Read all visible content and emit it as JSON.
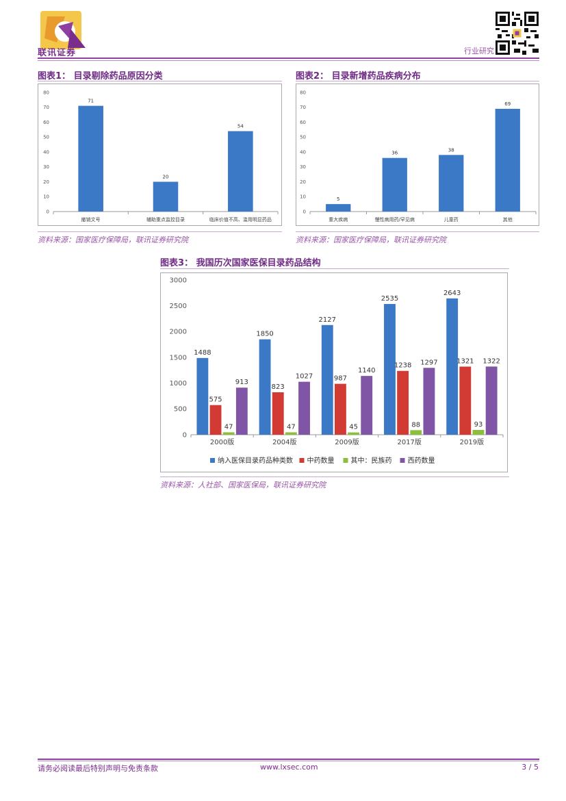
{
  "header": {
    "brand_name": "联讯证券",
    "section_label": "行业研究",
    "brand_color": "#8e3fa0"
  },
  "figures": {
    "fig1": {
      "title": "图表1：  目录剔除药品原因分类",
      "source": "资料来源：国家医疗保障局，联讯证券研究院"
    },
    "fig2": {
      "title": "图表2：  目录新增药品疾病分布",
      "source": "资料来源：国家医疗保障局，联讯证券研究院"
    },
    "fig3": {
      "title": "图表3：  我国历次国家医保目录药品结构",
      "source": "资料来源：人社部、国家医保局，联讯证券研究院"
    }
  },
  "chart_data": [
    {
      "type": "bar",
      "categories": [
        "撤销文号",
        "辅助重点监控目录",
        "临床价值不高、滥用明显药品"
      ],
      "values": [
        71,
        20,
        54
      ],
      "ylim": [
        0,
        80
      ],
      "yticks": [
        0,
        10,
        20,
        30,
        40,
        50,
        60,
        70,
        80
      ],
      "color": "#3b78c6",
      "grid": false
    },
    {
      "type": "bar",
      "categories": [
        "重大疾病",
        "慢性病用药/罕见病",
        "儿童药",
        "其他"
      ],
      "values": [
        5,
        36,
        38,
        69
      ],
      "ylim": [
        0,
        80
      ],
      "yticks": [
        0,
        10,
        20,
        30,
        40,
        50,
        60,
        70,
        80
      ],
      "color": "#3b78c6",
      "grid": false
    },
    {
      "type": "bar",
      "categories": [
        "2000版",
        "2004版",
        "2009版",
        "2017版",
        "2019版"
      ],
      "ylim": [
        0,
        3000
      ],
      "yticks": [
        0,
        500,
        1000,
        1500,
        2000,
        2500,
        3000
      ],
      "legend": "bottom",
      "grid": false,
      "series": [
        {
          "name": "纳入医保目录药品种类数",
          "values": [
            1488,
            1850,
            2127,
            2535,
            2643
          ],
          "color": "#3b78c6"
        },
        {
          "name": "中药数量",
          "values": [
            575,
            823,
            987,
            1238,
            1321
          ],
          "color": "#d23a34"
        },
        {
          "name": "其中：民族药",
          "values": [
            47,
            47,
            45,
            88,
            93
          ],
          "color": "#8bbf3c"
        },
        {
          "name": "西药数量",
          "values": [
            913,
            1027,
            1140,
            1297,
            1322
          ],
          "color": "#8055a6"
        }
      ]
    }
  ],
  "footer": {
    "disclaimer": "请务必阅读最后特别声明与免责条款",
    "website": "www.lxsec.com",
    "page": "3 / 5"
  }
}
